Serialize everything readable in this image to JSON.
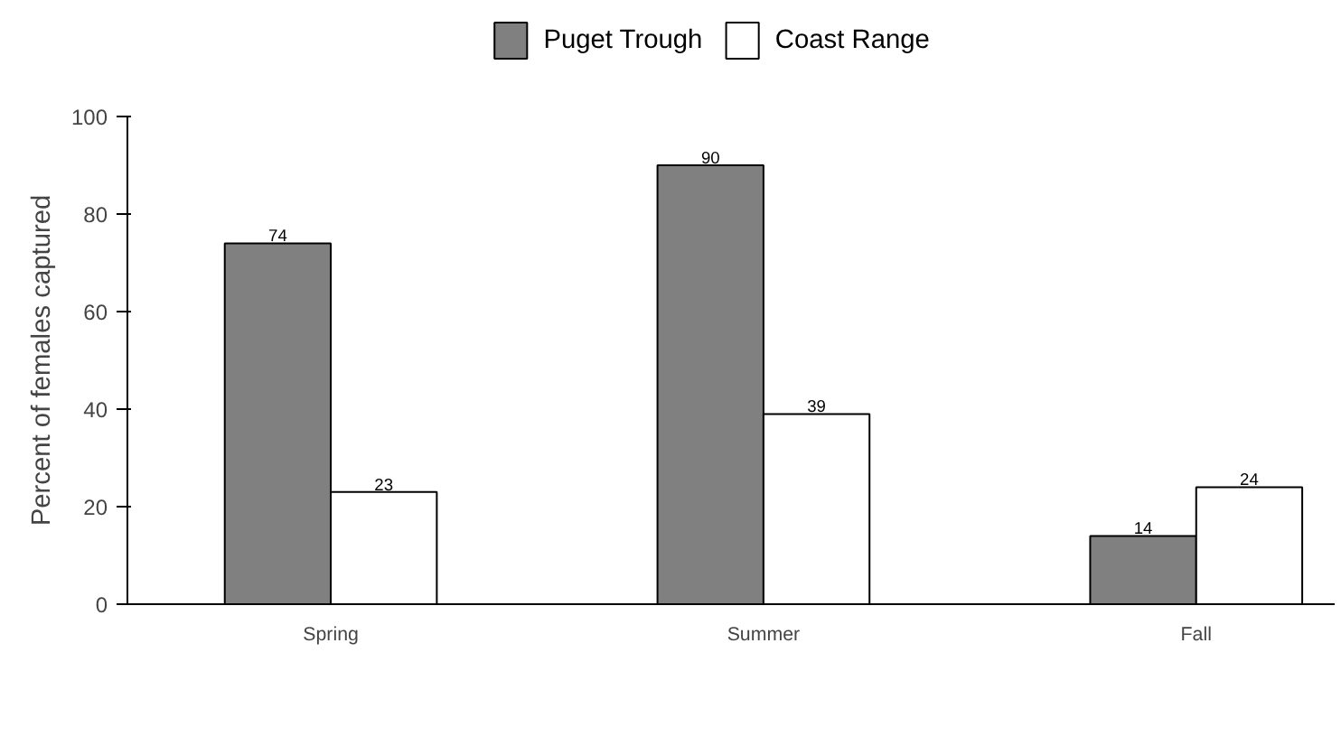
{
  "chart_data": {
    "type": "bar",
    "ylabel": "Percent of females captured",
    "categories": [
      "Spring",
      "Summer",
      "Fall"
    ],
    "series": [
      {
        "name": "Puget Trough",
        "color": "#808080",
        "values": [
          74,
          90,
          14
        ]
      },
      {
        "name": "Coast Range",
        "color": "#ffffff",
        "values": [
          23,
          39,
          24
        ]
      }
    ],
    "ylim": [
      0,
      100
    ],
    "yticks": [
      0,
      20,
      40,
      60,
      80,
      100
    ],
    "data_labels": true,
    "legend": "top",
    "grid": false
  }
}
